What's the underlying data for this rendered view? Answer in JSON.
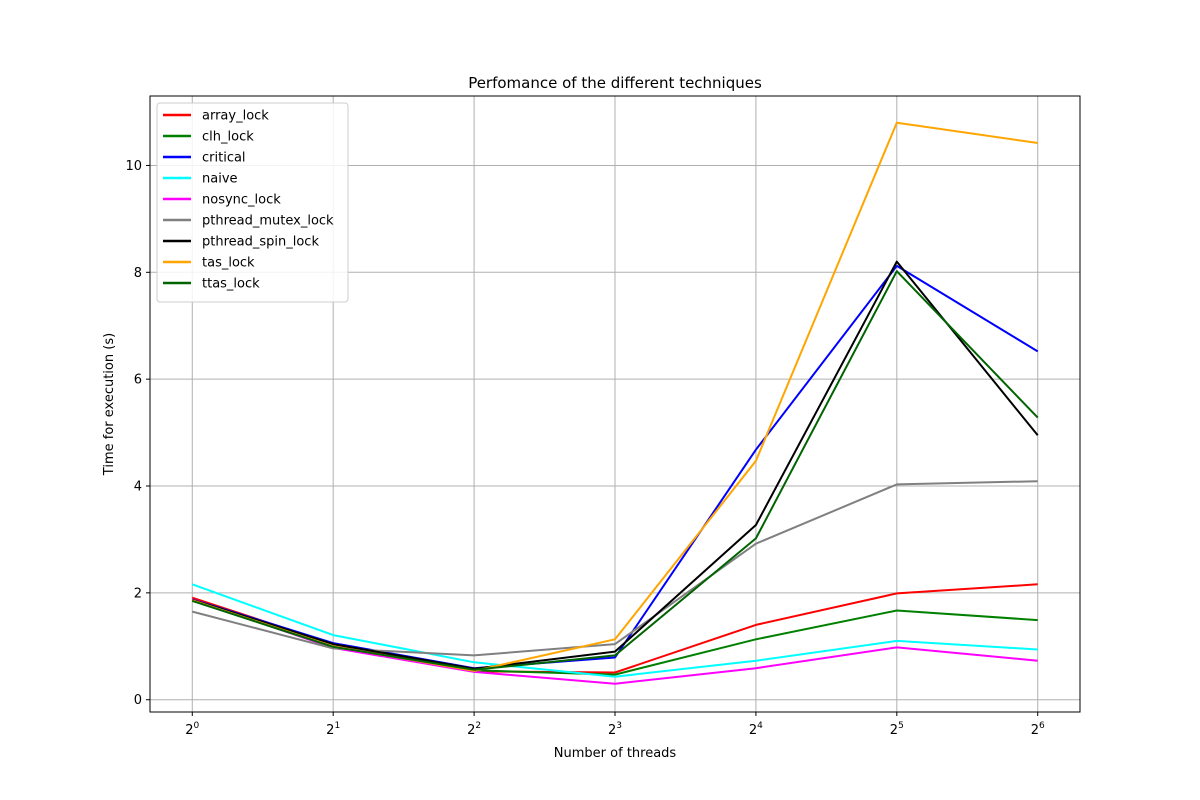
{
  "chart_data": {
    "type": "line",
    "title": "Perfomance of the different techniques",
    "xlabel": "Number of threads",
    "ylabel": "Time for execution (s)",
    "x_base": "2",
    "x_exponents": [
      "0",
      "1",
      "2",
      "3",
      "4",
      "5",
      "6"
    ],
    "x": [
      1,
      2,
      4,
      8,
      16,
      32,
      64
    ],
    "x_scale": "log2",
    "yticks": [
      "0",
      "2",
      "4",
      "6",
      "8",
      "10"
    ],
    "ylim": [
      -0.23,
      11.3
    ],
    "grid": true,
    "legend_position": "top-left",
    "series": [
      {
        "name": "array_lock",
        "color": "#ff0000",
        "values": [
          1.91,
          1.04,
          0.53,
          0.51,
          1.4,
          1.99,
          2.16
        ]
      },
      {
        "name": "clh_lock",
        "color": "#008000",
        "values": [
          1.86,
          0.98,
          0.55,
          0.47,
          1.13,
          1.67,
          1.49
        ]
      },
      {
        "name": "critical",
        "color": "#0000ff",
        "values": [
          1.88,
          1.06,
          0.59,
          0.79,
          4.68,
          8.12,
          6.52
        ]
      },
      {
        "name": "naive",
        "color": "#00ffff",
        "values": [
          2.16,
          1.21,
          0.7,
          0.43,
          0.73,
          1.1,
          0.94
        ]
      },
      {
        "name": "nosync_lock",
        "color": "#ff00ff",
        "values": [
          1.88,
          0.97,
          0.52,
          0.3,
          0.59,
          0.98,
          0.73
        ]
      },
      {
        "name": "pthread_mutex_lock",
        "color": "#808080",
        "values": [
          1.65,
          0.96,
          0.83,
          1.04,
          2.92,
          4.03,
          4.09
        ]
      },
      {
        "name": "pthread_spin_lock",
        "color": "#000000",
        "values": [
          1.87,
          1.04,
          0.58,
          0.9,
          3.27,
          8.2,
          4.95
        ]
      },
      {
        "name": "tas_lock",
        "color": "#ffa500",
        "values": [
          1.86,
          1.0,
          0.54,
          1.13,
          4.47,
          10.8,
          10.42
        ]
      },
      {
        "name": "ttas_lock",
        "color": "#006400",
        "values": [
          1.85,
          0.99,
          0.56,
          0.83,
          3.02,
          8.02,
          5.28
        ]
      }
    ]
  }
}
